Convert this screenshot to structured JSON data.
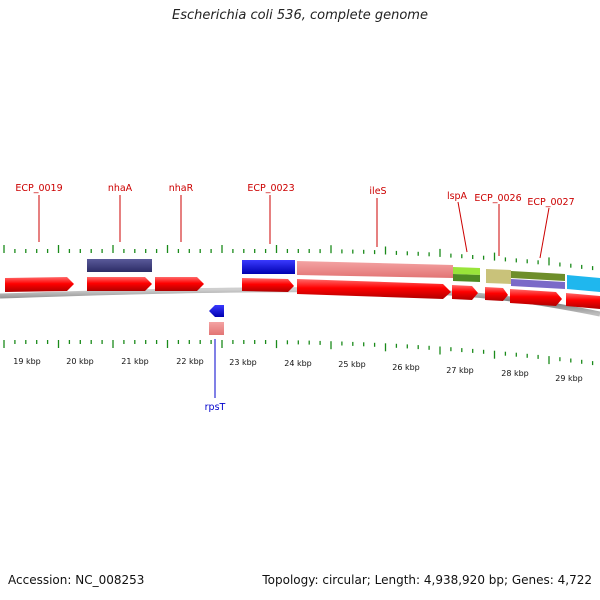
{
  "title": "Escherichia coli 536, complete genome",
  "accession": "Accession: NC_008253",
  "summary": "Topology: circular; Length: 4,938,920 bp; Genes: 4,722",
  "colors": {
    "feature_red": "#ff0000",
    "label_red": "#cc0000",
    "label_blue": "#0000cc",
    "tick_green": "#1a8a1a",
    "backbone_gray": "#888888"
  },
  "gene_labels": [
    {
      "name": "ECP_0019",
      "color": "red"
    },
    {
      "name": "nhaA",
      "color": "red"
    },
    {
      "name": "nhaR",
      "color": "red"
    },
    {
      "name": "ECP_0023",
      "color": "red"
    },
    {
      "name": "ileS",
      "color": "red"
    },
    {
      "name": "lspA",
      "color": "red"
    },
    {
      "name": "ECP_0026",
      "color": "red"
    },
    {
      "name": "ECP_0027",
      "color": "red"
    },
    {
      "name": "rpsT",
      "color": "blue"
    }
  ],
  "scale_labels": [
    "19 kbp",
    "20 kbp",
    "21 kbp",
    "22 kbp",
    "23 kbp",
    "24 kbp",
    "25 kbp",
    "26 kbp",
    "27 kbp",
    "28 kbp",
    "29 kbp"
  ]
}
